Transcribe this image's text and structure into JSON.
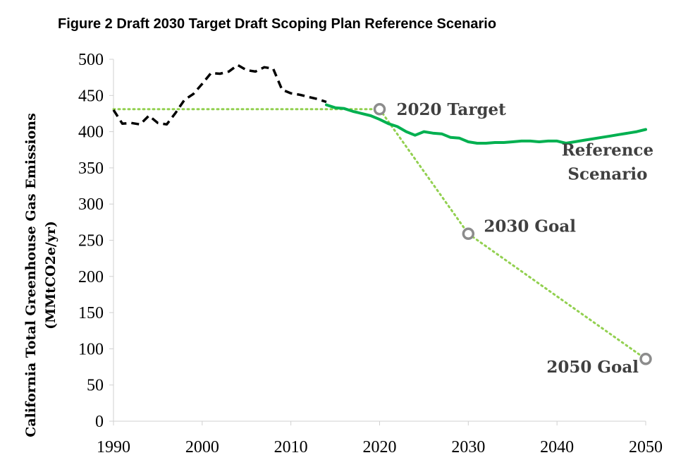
{
  "chart_data": {
    "type": "line",
    "title": "Figure 2 Draft 2030 Target Draft Scoping Plan Reference Scenario",
    "ylabel_line1": "California Total Greenhouse Gas Emissions",
    "ylabel_line2": "(MMtCO2e/yr)",
    "xlim": [
      1990,
      2050
    ],
    "ylim": [
      0,
      500
    ],
    "x_ticks": [
      1990,
      2000,
      2010,
      2020,
      2030,
      2040,
      2050
    ],
    "y_ticks": [
      0,
      50,
      100,
      150,
      200,
      250,
      300,
      350,
      400,
      450,
      500
    ],
    "grid": false,
    "series": [
      {
        "key": "historical",
        "color": "#000000",
        "style": "dashed",
        "x": [
          1990,
          1991,
          1992,
          1993,
          1994,
          1995,
          1996,
          1997,
          1998,
          1999,
          2000,
          2001,
          2002,
          2003,
          2004,
          2005,
          2006,
          2007,
          2008,
          2009,
          2010,
          2011,
          2012,
          2013,
          2014
        ],
        "y": [
          430,
          411,
          412,
          410,
          422,
          412,
          410,
          426,
          444,
          452,
          466,
          481,
          480,
          483,
          492,
          485,
          483,
          489,
          487,
          458,
          453,
          451,
          448,
          445,
          441
        ]
      },
      {
        "key": "reference",
        "name": "Reference Scenario",
        "color": "#00b050",
        "style": "solid",
        "x": [
          2014,
          2015,
          2016,
          2017,
          2018,
          2019,
          2020,
          2021,
          2022,
          2023,
          2024,
          2025,
          2026,
          2027,
          2028,
          2029,
          2030,
          2031,
          2032,
          2033,
          2034,
          2035,
          2036,
          2037,
          2038,
          2039,
          2040,
          2041,
          2042,
          2043,
          2044,
          2045,
          2046,
          2047,
          2048,
          2049,
          2050
        ],
        "y": [
          437,
          433,
          432,
          428,
          425,
          422,
          417,
          411,
          407,
          400,
          395,
          400,
          398,
          397,
          392,
          391,
          386,
          384,
          384,
          385,
          385,
          386,
          387,
          387,
          386,
          387,
          387,
          384,
          386,
          388,
          390,
          392,
          394,
          396,
          398,
          400,
          403
        ]
      },
      {
        "key": "target_path",
        "color": "#92d050",
        "style": "dotted",
        "x": [
          1990,
          2020,
          2030,
          2050
        ],
        "y": [
          431,
          431,
          259,
          86
        ]
      }
    ],
    "markers": [
      {
        "x": 2020,
        "y": 431,
        "label": "2020 Target"
      },
      {
        "x": 2030,
        "y": 259,
        "label": "2030 Goal"
      },
      {
        "x": 2050,
        "y": 86,
        "label": "2050 Goal"
      }
    ],
    "annotations": [
      {
        "text": "Reference",
        "x": 2045.7,
        "y": 367
      },
      {
        "text": "Scenario",
        "x": 2045.7,
        "y": 334
      }
    ]
  }
}
